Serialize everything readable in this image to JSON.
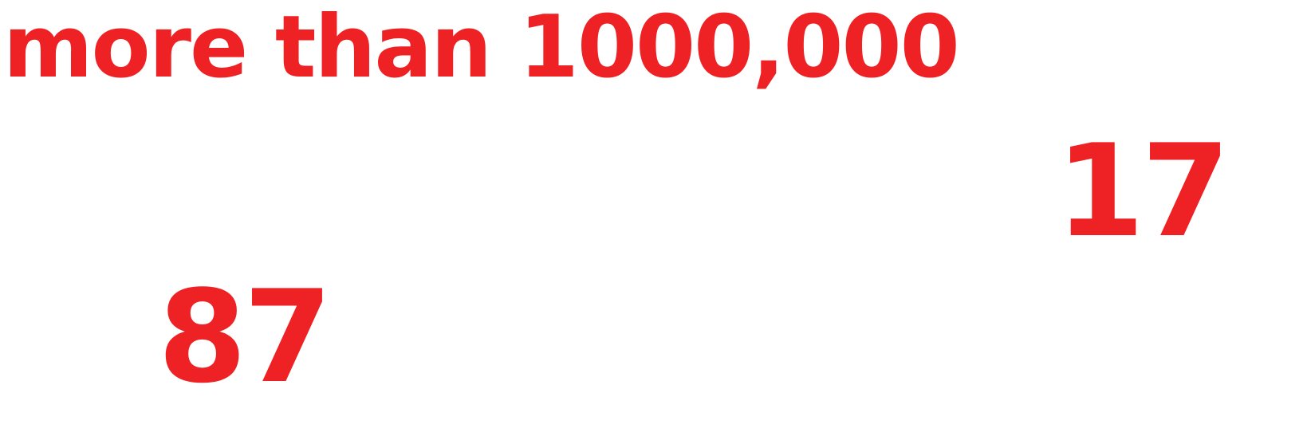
{
  "accent_color": "#ee2224",
  "headline": {
    "text": "more than 1000,000"
  },
  "stats": {
    "right_number": "17",
    "left_number": "87"
  }
}
